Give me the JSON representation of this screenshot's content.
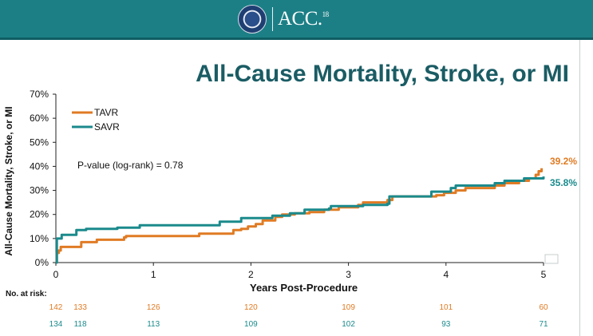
{
  "header": {
    "brand": "ACC.18",
    "brand_main": "ACC.",
    "brand_sup": "18",
    "seal_icon": "acc-seal-logo-icon",
    "background": "#1c7f86"
  },
  "title": "All-Cause Mortality, Stroke, or MI",
  "chart_data": {
    "type": "line",
    "title": "All-Cause Mortality, Stroke, or MI",
    "xlabel": "Years Post-Procedure",
    "ylabel": "All-Cause Mortality, Stroke, or MI",
    "xlim": [
      0,
      5
    ],
    "ylim": [
      0,
      70
    ],
    "x_ticks": [
      "0",
      "1",
      "2",
      "3",
      "4",
      "5"
    ],
    "y_ticks": [
      "0%",
      "10%",
      "20%",
      "30%",
      "40%",
      "50%",
      "60%",
      "70%"
    ],
    "grid": false,
    "legend_position": "top-left",
    "annotation": "P-value (log-rank) = 0.78",
    "series": [
      {
        "name": "TAVR",
        "color": "#e07b24",
        "end_label": "39.2%",
        "points": [
          [
            0,
            0
          ],
          [
            0.01,
            4
          ],
          [
            0.03,
            5
          ],
          [
            0.05,
            6.5
          ],
          [
            0.25,
            6.5
          ],
          [
            0.26,
            8.5
          ],
          [
            0.4,
            8.5
          ],
          [
            0.42,
            9.5
          ],
          [
            0.68,
            9.5
          ],
          [
            0.7,
            10.5
          ],
          [
            0.72,
            11
          ],
          [
            1.45,
            11
          ],
          [
            1.47,
            12
          ],
          [
            1.8,
            12
          ],
          [
            1.82,
            13.5
          ],
          [
            1.9,
            14
          ],
          [
            1.97,
            15
          ],
          [
            2.05,
            16
          ],
          [
            2.12,
            17.5
          ],
          [
            2.25,
            19
          ],
          [
            2.32,
            20
          ],
          [
            2.45,
            20.5
          ],
          [
            2.6,
            21
          ],
          [
            2.75,
            22
          ],
          [
            2.9,
            23
          ],
          [
            3.1,
            24
          ],
          [
            3.15,
            25
          ],
          [
            3.4,
            26
          ],
          [
            3.45,
            27.5
          ],
          [
            3.9,
            28
          ],
          [
            3.98,
            29
          ],
          [
            4.1,
            30
          ],
          [
            4.2,
            31
          ],
          [
            4.5,
            32
          ],
          [
            4.6,
            33
          ],
          [
            4.75,
            34
          ],
          [
            4.85,
            35
          ],
          [
            4.92,
            36.5
          ],
          [
            4.95,
            38
          ],
          [
            4.98,
            39.2
          ]
        ]
      },
      {
        "name": "SAVR",
        "color": "#1b8a8c",
        "end_label": "35.8%",
        "points": [
          [
            0,
            0
          ],
          [
            0.01,
            10
          ],
          [
            0.06,
            11.5
          ],
          [
            0.2,
            11.5
          ],
          [
            0.21,
            13.5
          ],
          [
            0.3,
            13.5
          ],
          [
            0.31,
            14
          ],
          [
            0.62,
            14
          ],
          [
            0.63,
            14.5
          ],
          [
            0.85,
            14.5
          ],
          [
            0.86,
            15.5
          ],
          [
            1.65,
            15.5
          ],
          [
            1.68,
            17
          ],
          [
            1.9,
            17
          ],
          [
            1.9,
            18.5
          ],
          [
            2.2,
            18.5
          ],
          [
            2.22,
            19.5
          ],
          [
            2.4,
            20.5
          ],
          [
            2.55,
            22
          ],
          [
            2.8,
            22.5
          ],
          [
            2.82,
            23.5
          ],
          [
            3.1,
            23.5
          ],
          [
            3.15,
            24
          ],
          [
            3.4,
            24.5
          ],
          [
            3.42,
            27.5
          ],
          [
            3.82,
            27.5
          ],
          [
            3.85,
            29.5
          ],
          [
            4.02,
            29.5
          ],
          [
            4.05,
            31
          ],
          [
            4.1,
            32
          ],
          [
            4.5,
            33
          ],
          [
            4.6,
            34
          ],
          [
            4.8,
            35
          ],
          [
            5.0,
            35.8
          ]
        ]
      }
    ],
    "at_risk": {
      "label": "No. at risk:",
      "x": [
        0,
        0.25,
        1,
        2,
        3,
        4,
        5
      ],
      "rows": [
        {
          "name": "TAVR",
          "color": "#e07b24",
          "values": [
            "142",
            "133",
            "126",
            "120",
            "109",
            "101",
            "60"
          ]
        },
        {
          "name": "SAVR",
          "color": "#1b8a8c",
          "values": [
            "134",
            "118",
            "113",
            "109",
            "102",
            "93",
            "71"
          ]
        }
      ]
    }
  }
}
